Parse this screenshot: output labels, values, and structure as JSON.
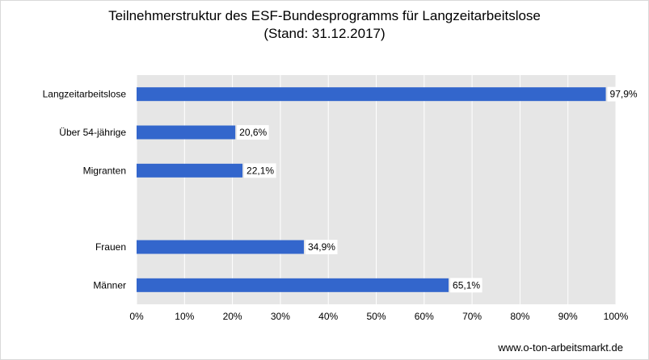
{
  "chart_data": {
    "type": "bar",
    "orientation": "horizontal",
    "title": "Teilnehmerstruktur des ESF-Bundesprogramms für Langzeitarbeitslose",
    "subtitle": "(Stand: 31.12.2017)",
    "categories": [
      "Langzeitarbeitslose",
      "Über 54-jährige",
      "Migranten",
      "",
      "Frauen",
      "Männer"
    ],
    "values": [
      97.9,
      20.6,
      22.1,
      null,
      34.9,
      65.1
    ],
    "data_labels": [
      "97,9%",
      "20,6%",
      "22,1%",
      "",
      "34,9%",
      "65,1%"
    ],
    "xlim": [
      0,
      100
    ],
    "x_ticks": [
      0,
      10,
      20,
      30,
      40,
      50,
      60,
      70,
      80,
      90,
      100
    ],
    "x_tick_labels": [
      "0%",
      "10%",
      "20%",
      "30%",
      "40%",
      "50%",
      "60%",
      "70%",
      "80%",
      "90%",
      "100%"
    ],
    "grid": true,
    "bar_color": "#3366cc",
    "plot_background": "#e6e6e6",
    "grid_color": "#ffffff",
    "legend": "none"
  },
  "source": "www.o-ton-arbeitsmarkt.de"
}
